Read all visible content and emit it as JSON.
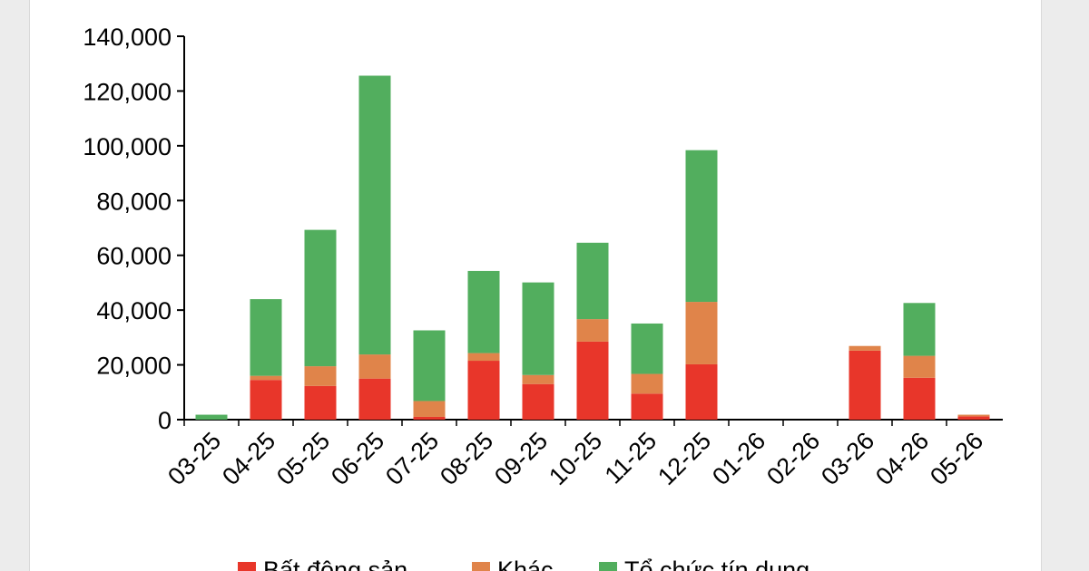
{
  "chart_data": {
    "type": "bar",
    "stacked": true,
    "categories": [
      "03-25",
      "04-25",
      "05-25",
      "06-25",
      "07-25",
      "08-25",
      "09-25",
      "10-25",
      "11-25",
      "12-25",
      "01-26",
      "02-26",
      "03-26",
      "04-26",
      "05-26"
    ],
    "series": [
      {
        "name": "Bất động sản",
        "color": "#e8362a",
        "values": [
          0,
          14500,
          12300,
          15000,
          1000,
          21500,
          13000,
          28500,
          9500,
          20200,
          0,
          0,
          25200,
          15300,
          1200
        ]
      },
      {
        "name": "Khác",
        "color": "#e0844a",
        "values": [
          0,
          1500,
          7200,
          8800,
          5800,
          2800,
          3300,
          8200,
          7200,
          22800,
          0,
          0,
          1700,
          8000,
          600
        ]
      },
      {
        "name": "Tổ chức tín dụng",
        "color": "#52ae5e",
        "values": [
          1800,
          28000,
          49800,
          101800,
          25800,
          30000,
          33800,
          27900,
          18400,
          55400,
          0,
          0,
          0,
          19300,
          0
        ]
      }
    ],
    "yticks": [
      "0",
      "20,000",
      "40,000",
      "60,000",
      "80,000",
      "100,000",
      "120,000",
      "140,000"
    ],
    "ylim": [
      0,
      140000
    ],
    "legend_position": "bottom"
  }
}
